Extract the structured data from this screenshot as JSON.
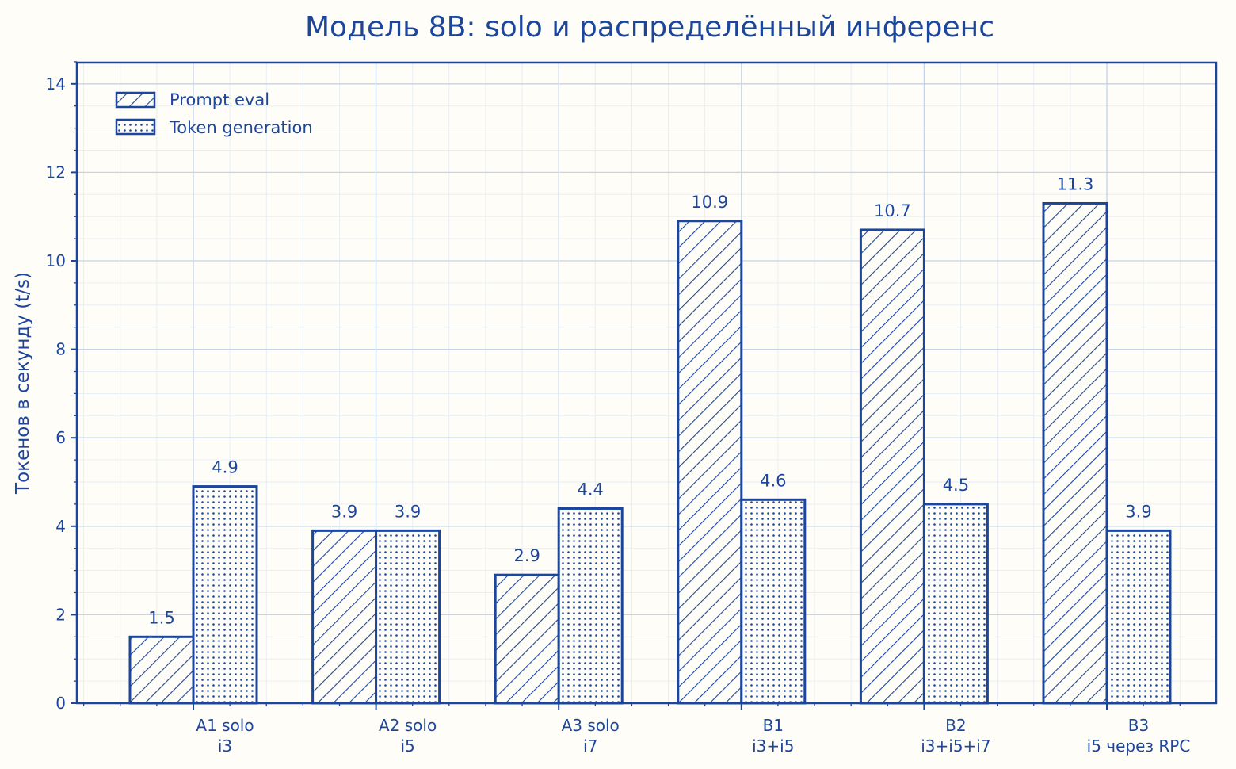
{
  "chart_data": {
    "type": "bar",
    "title": "Модель 8B: solo и распределённый инференс",
    "xlabel": "",
    "ylabel": "Токенов в секунду (t/s)",
    "ylim": [
      0,
      14.5
    ],
    "yticks": [
      "0",
      "2",
      "4",
      "6",
      "8",
      "10",
      "12",
      "14"
    ],
    "grid": true,
    "legend_position": "top-left",
    "categories": [
      {
        "line1": "A1 solo",
        "line2": "i3"
      },
      {
        "line1": "A2 solo",
        "line2": "i5"
      },
      {
        "line1": "A3 solo",
        "line2": "i7"
      },
      {
        "line1": "B1",
        "line2": "i3+i5"
      },
      {
        "line1": "B2",
        "line2": "i3+i5+i7"
      },
      {
        "line1": "B3",
        "line2": "i5 через RPC"
      }
    ],
    "series": [
      {
        "name": "Prompt eval",
        "pattern": "hatch",
        "values": [
          1.5,
          3.9,
          2.9,
          10.9,
          10.7,
          11.3
        ],
        "labels": [
          "1.5",
          "3.9",
          "2.9",
          "10.9",
          "10.7",
          "11.3"
        ]
      },
      {
        "name": "Token generation",
        "pattern": "dots",
        "values": [
          4.9,
          3.9,
          4.4,
          4.6,
          4.5,
          3.9
        ],
        "labels": [
          "4.9",
          "3.9",
          "4.4",
          "4.6",
          "4.5",
          "3.9"
        ]
      }
    ],
    "colors": {
      "accent": "#1c469c",
      "background": "#fffdf7",
      "grid_major": "#c3d3ea",
      "grid_minor": "#e6edf6"
    }
  }
}
